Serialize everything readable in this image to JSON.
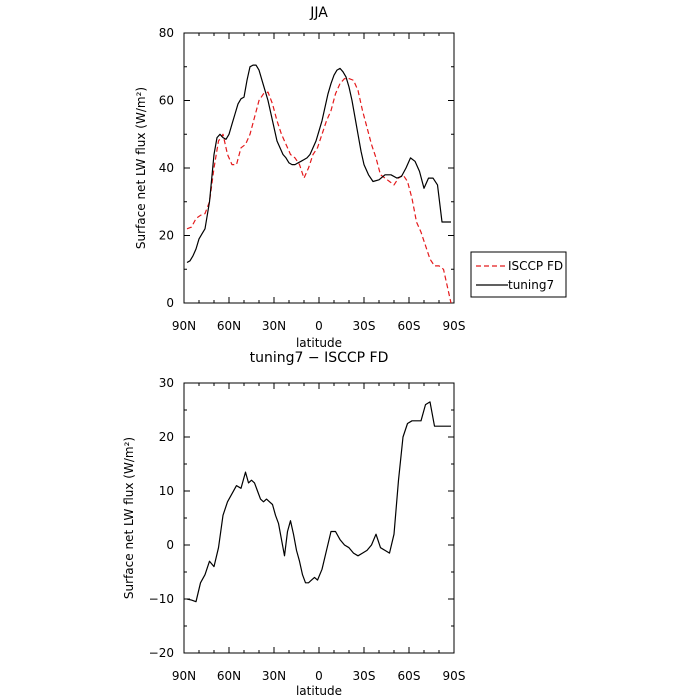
{
  "chart_data": [
    {
      "type": "line",
      "title": "JJA",
      "xlabel": "latitude",
      "ylabel": "Surface net LW flux (W/m²)",
      "xlim": [
        90,
        -90
      ],
      "ylim": [
        0,
        80
      ],
      "x_ticks": [
        90,
        60,
        30,
        0,
        -30,
        -60,
        -90
      ],
      "x_tick_labels": [
        "90N",
        "60N",
        "30N",
        "0",
        "30S",
        "60S",
        "90S"
      ],
      "y_ticks": [
        0,
        20,
        40,
        60,
        80
      ],
      "y_tick_labels": [
        "0",
        "20",
        "40",
        "60",
        "80"
      ],
      "legend": {
        "placement": "right",
        "entries": [
          "ISCCP FD",
          "tuning7"
        ]
      },
      "series": [
        {
          "name": "ISCCP FD",
          "color": "#e41a1c",
          "style": "dashed",
          "x": [
            88,
            85,
            82,
            79,
            76,
            73,
            70,
            67,
            64,
            61,
            58,
            55,
            52,
            49,
            46,
            43,
            40,
            37,
            34,
            31,
            28,
            25,
            22,
            19,
            16,
            13,
            10,
            7,
            4,
            1,
            -2,
            -5,
            -8,
            -11,
            -14,
            -17,
            -20,
            -23,
            -26,
            -29,
            -32,
            -35,
            -38,
            -41,
            -44,
            -47,
            -50,
            -53,
            -56,
            -59,
            -62,
            -65,
            -68,
            -71,
            -74,
            -77,
            -80,
            -83,
            -86,
            -88
          ],
          "y": [
            22,
            22.5,
            25,
            26,
            26.5,
            30,
            40,
            48,
            50,
            44,
            41,
            41,
            46,
            47,
            50,
            55,
            60,
            62,
            62.5,
            59,
            54,
            50,
            47,
            44,
            43,
            41,
            37,
            40,
            44,
            46,
            50,
            54,
            57,
            62,
            65,
            66.5,
            66.5,
            66,
            63,
            57,
            52,
            47,
            43,
            38,
            37,
            36,
            35,
            37,
            38,
            36,
            31,
            24,
            21,
            17,
            13,
            11,
            11,
            10,
            4,
            0
          ]
        },
        {
          "name": "tuning7",
          "color": "#000000",
          "style": "solid",
          "x": [
            88,
            86,
            84,
            82,
            80,
            78,
            76,
            73,
            70,
            68,
            66,
            64,
            62,
            60,
            58,
            56,
            54,
            52,
            50,
            48,
            46,
            44,
            42,
            40,
            38,
            36,
            34,
            32,
            30,
            28,
            26,
            24,
            22,
            20,
            18,
            16,
            14,
            12,
            10,
            8,
            6,
            4,
            2,
            0,
            -2,
            -4,
            -6,
            -8,
            -10,
            -12,
            -14,
            -16,
            -18,
            -20,
            -22,
            -24,
            -26,
            -28,
            -30,
            -33,
            -36,
            -40,
            -44,
            -48,
            -52,
            -55,
            -58,
            -61,
            -64,
            -67,
            -70,
            -73,
            -76,
            -79,
            -82,
            -85,
            -88
          ],
          "y": [
            12,
            12.5,
            14,
            16,
            19,
            20.5,
            22,
            30,
            44,
            49,
            50,
            49,
            48.5,
            50,
            53,
            56,
            59,
            60.5,
            61,
            66,
            70,
            70.5,
            70.5,
            69,
            66,
            63,
            60,
            56,
            52,
            48,
            46,
            44,
            43,
            41.5,
            41,
            41,
            41.5,
            42,
            42.5,
            43,
            44,
            46,
            48,
            51,
            54,
            58,
            62,
            65,
            67.5,
            69,
            69.5,
            68.5,
            67,
            64,
            60,
            55,
            50,
            45,
            41,
            38,
            36,
            36.5,
            38,
            38,
            37,
            37.5,
            40,
            43,
            42,
            39,
            34,
            37,
            37,
            35,
            24,
            24,
            24
          ]
        }
      ]
    },
    {
      "type": "line",
      "title": "tuning7 − ISCCP FD",
      "xlabel": "latitude",
      "ylabel": "Surface net LW flux (W/m²)",
      "xlim": [
        90,
        -90
      ],
      "ylim": [
        -20,
        30
      ],
      "x_ticks": [
        90,
        60,
        30,
        0,
        -30,
        -60,
        -90
      ],
      "x_tick_labels": [
        "90N",
        "60N",
        "30N",
        "0",
        "30S",
        "60S",
        "90S"
      ],
      "y_ticks": [
        -20,
        -10,
        0,
        10,
        20,
        30
      ],
      "y_tick_labels": [
        "−20",
        "−10",
        "0",
        "10",
        "20",
        "30"
      ],
      "series": [
        {
          "color": "#000000",
          "style": "solid",
          "x": [
            88,
            85,
            82,
            79,
            76,
            73,
            70,
            67,
            64,
            61,
            58,
            55,
            52,
            49,
            47,
            45,
            43,
            41,
            39,
            37,
            35,
            33,
            31,
            29,
            27,
            25,
            23,
            21,
            19,
            17,
            15,
            13,
            11,
            9,
            7,
            5,
            3,
            1,
            -2,
            -5,
            -8,
            -11,
            -14,
            -17,
            -20,
            -23,
            -26,
            -29,
            -32,
            -35,
            -38,
            -41,
            -44,
            -47,
            -50,
            -53,
            -56,
            -59,
            -62,
            -65,
            -68,
            -71,
            -74,
            -77,
            -80,
            -82,
            -84,
            -86,
            -88
          ],
          "y": [
            -10,
            -10.2,
            -10.5,
            -7,
            -5.5,
            -3,
            -4,
            -0.5,
            5.5,
            8,
            9.5,
            11,
            10.5,
            13.5,
            11.5,
            12,
            11.5,
            10,
            8.5,
            8,
            8.5,
            8,
            7.5,
            5.5,
            4,
            1,
            -2,
            2.5,
            4.5,
            2,
            -1,
            -3,
            -5.5,
            -7,
            -7,
            -6.5,
            -6,
            -6.5,
            -4.5,
            -1,
            2.5,
            2.5,
            1,
            0,
            -0.5,
            -1.5,
            -2,
            -1.5,
            -1,
            0,
            2,
            -0.5,
            -1,
            -1.5,
            2,
            12,
            20,
            22.5,
            23,
            23,
            23,
            26,
            26.5,
            22,
            22,
            22,
            22,
            22,
            22
          ]
        }
      ]
    }
  ]
}
